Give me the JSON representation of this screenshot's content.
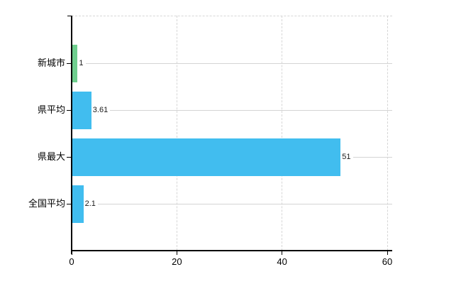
{
  "chart": {
    "background": "#ffffff",
    "axis_color": "#000000",
    "grid_color": "#d6d6d6",
    "row_line_color": "#d4d4d4",
    "label_color": "#000000"
  },
  "chart_data": {
    "type": "bar",
    "orientation": "horizontal",
    "title": "",
    "xlabel": "",
    "ylabel": "",
    "categories": [
      "新城市",
      "県平均",
      "県最大",
      "全国平均"
    ],
    "values": [
      1,
      3.61,
      51,
      2.1
    ],
    "value_labels": [
      "1",
      "3.61",
      "51",
      "2.1"
    ],
    "bar_colors": [
      "#6fce8e",
      "#41bdef",
      "#41bdef",
      "#41bdef"
    ],
    "xlim": [
      0,
      60
    ],
    "xticks": [
      0,
      20,
      40,
      60
    ],
    "xtick_labels": [
      "0",
      "20",
      "40",
      "60"
    ],
    "grid": true,
    "legend": false
  }
}
